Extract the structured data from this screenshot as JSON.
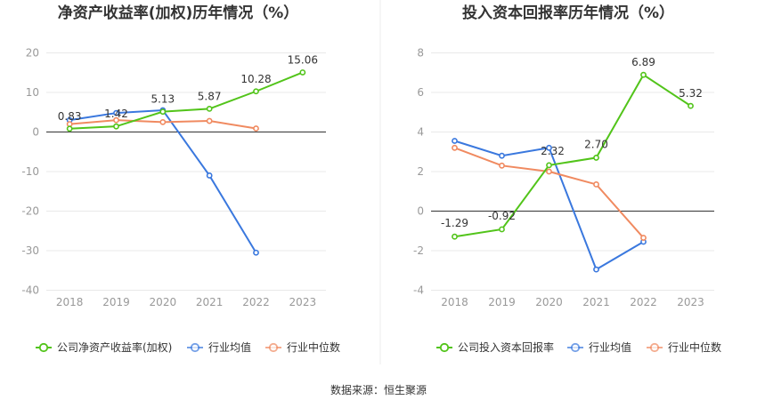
{
  "source_label": "数据来源：恒生聚源",
  "chart_data": [
    {
      "type": "line",
      "title": "净资产收益率(加权)历年情况（%）",
      "categories": [
        "2018",
        "2019",
        "2020",
        "2021",
        "2022",
        "2023"
      ],
      "ylim": [
        -40,
        20
      ],
      "yticks": [
        20,
        10,
        0,
        -10,
        -20,
        -30,
        -40
      ],
      "grid": true,
      "legend_position": "bottom",
      "series": [
        {
          "name": "公司净资产收益率(加权)",
          "color": "#52c41a",
          "values": [
            0.83,
            1.42,
            5.13,
            5.87,
            10.28,
            15.06
          ],
          "labels": [
            "0.83",
            "1.42",
            "5.13",
            "5.87",
            "10.28",
            "15.06"
          ]
        },
        {
          "name": "行业均值",
          "color": "#3a78de",
          "values": [
            3.0,
            4.8,
            5.5,
            -11.0,
            -30.5,
            null
          ]
        },
        {
          "name": "行业中位数",
          "color": "#f08a60",
          "values": [
            2.0,
            3.0,
            2.5,
            2.8,
            0.9,
            null
          ]
        }
      ]
    },
    {
      "type": "line",
      "title": "投入资本回报率历年情况（%）",
      "categories": [
        "2018",
        "2019",
        "2020",
        "2021",
        "2022",
        "2023"
      ],
      "ylim": [
        -4,
        8
      ],
      "yticks": [
        8,
        6,
        4,
        2,
        0,
        -2,
        -4
      ],
      "grid": true,
      "legend_position": "bottom",
      "series": [
        {
          "name": "公司投入资本回报率",
          "color": "#52c41a",
          "values": [
            -1.29,
            -0.92,
            2.32,
            2.7,
            6.89,
            5.32
          ],
          "labels": [
            "-1.29",
            "-0.92",
            "2.32",
            "2.70",
            "6.89",
            "5.32"
          ]
        },
        {
          "name": "行业均值",
          "color": "#3a78de",
          "values": [
            3.55,
            2.8,
            3.2,
            -2.95,
            -1.55,
            null
          ]
        },
        {
          "name": "行业中位数",
          "color": "#f08a60",
          "values": [
            3.2,
            2.3,
            2.0,
            1.35,
            -1.35,
            null
          ]
        }
      ]
    }
  ]
}
